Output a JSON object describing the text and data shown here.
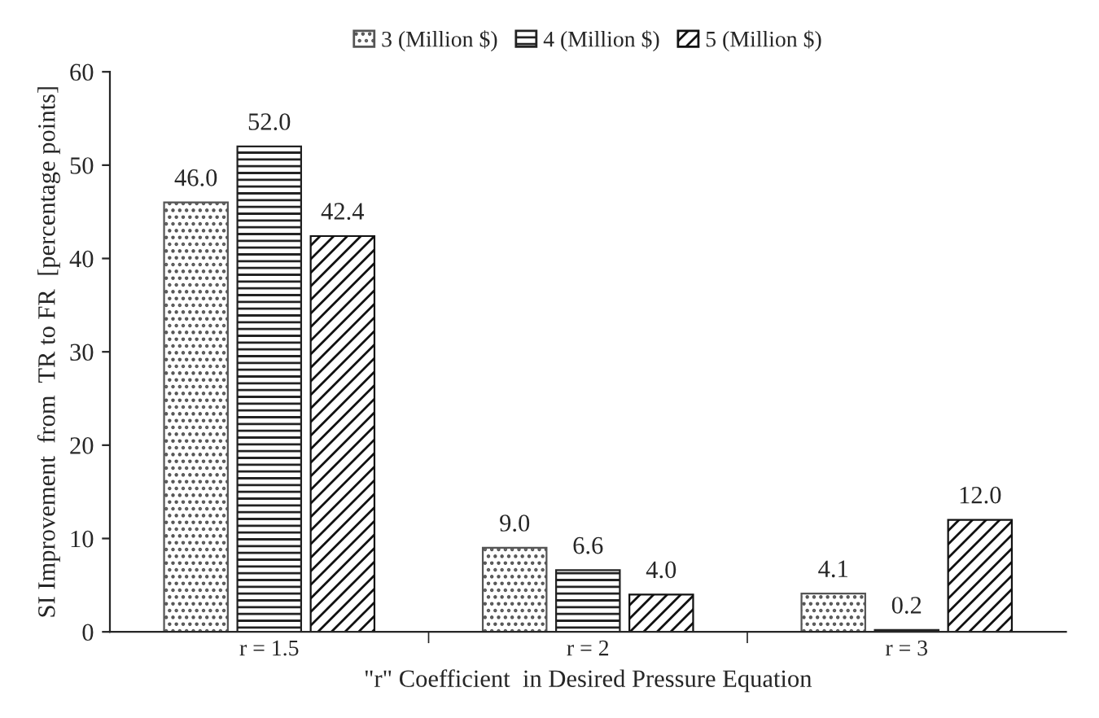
{
  "chart_data": {
    "type": "bar",
    "xlabel": "\"r\" Coefficient  in Desired Pressure Equation",
    "ylabel": "SI Improvement  from  TR to FR  [percentage points]",
    "categories": [
      "r = 1.5",
      "r = 2",
      "r = 3"
    ],
    "series": [
      {
        "name": "3 (Million $)",
        "color": "#555555",
        "values": [
          46.0,
          9.0,
          4.1
        ]
      },
      {
        "name": "4 (Million $)",
        "color": "#222222",
        "values": [
          52.0,
          6.6,
          0.2
        ]
      },
      {
        "name": "5 (Million $)",
        "color": "#111111",
        "values": [
          42.4,
          4.0,
          12.0
        ]
      }
    ],
    "value_labels": [
      [
        "46.0",
        "9.0",
        "4.1"
      ],
      [
        "52.0",
        "6.6",
        "0.2"
      ],
      [
        "42.4",
        "4.0",
        "12.0"
      ]
    ],
    "ylim": [
      0,
      60
    ],
    "yticks": [
      0,
      10,
      20,
      30,
      40,
      50,
      60
    ],
    "grid": false,
    "legend": "top"
  }
}
